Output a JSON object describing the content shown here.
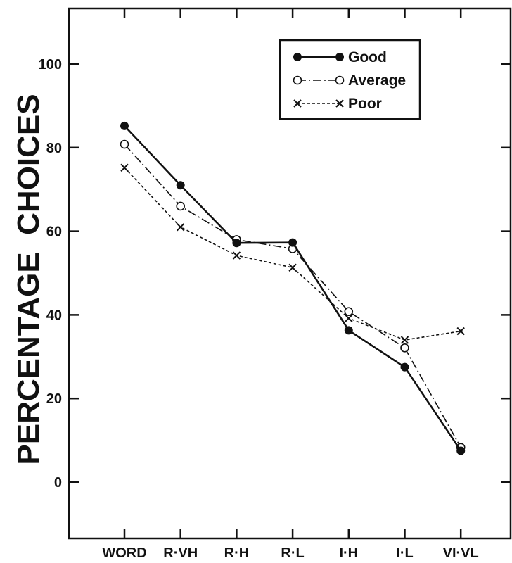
{
  "chart_data": {
    "type": "line",
    "ylabel": "PERCENTAGE  CHOICES",
    "xlabel": "",
    "title": "",
    "categories": [
      "WORD",
      "R·VH",
      "R·H",
      "R·L",
      "I·H",
      "I·L",
      "VI·VL"
    ],
    "ylim": [
      -12,
      113
    ],
    "yticks": [
      0,
      20,
      40,
      60,
      80,
      100
    ],
    "grid": false,
    "legend_position": "top-right",
    "series": [
      {
        "name": "Good",
        "marker": "filled-circle",
        "line": "solid",
        "values": [
          85.2,
          71.0,
          57.2,
          57.3,
          36.3,
          27.5,
          7.5
        ]
      },
      {
        "name": "Average",
        "marker": "open-circle",
        "line": "dash-dot",
        "values": [
          80.8,
          66.0,
          58.0,
          55.8,
          40.8,
          32.1,
          8.3
        ]
      },
      {
        "name": "Poor",
        "marker": "x",
        "line": "dashed",
        "values": [
          75.2,
          61.0,
          54.2,
          51.3,
          39.2,
          34.0,
          36.1
        ]
      }
    ],
    "colors": {
      "ink": "#111111",
      "background": "#ffffff"
    }
  }
}
